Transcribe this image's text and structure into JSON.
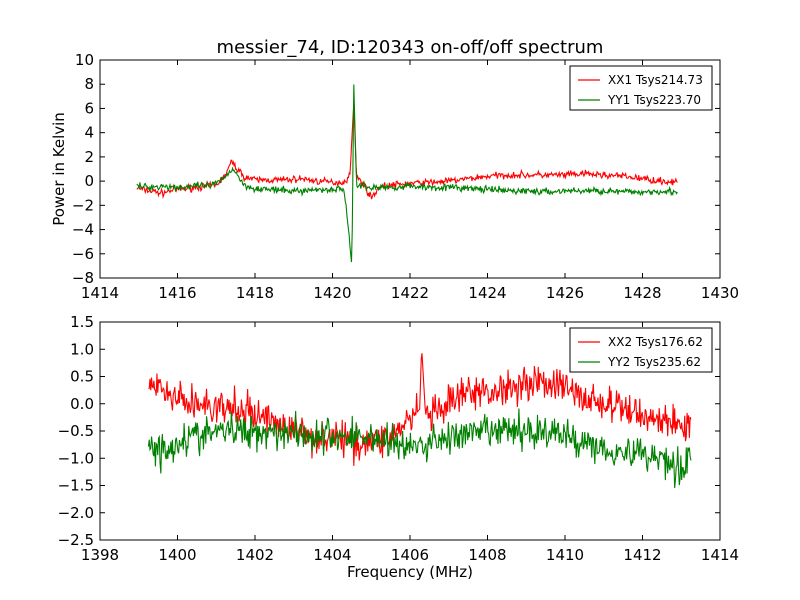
{
  "title": "messier_74, ID:120343 on-off/off spectrum",
  "ylabel": "Power in Kelvin",
  "xlabel": "Frequency (MHz)",
  "colors": {
    "XX": "#ff0000",
    "YY": "#008000"
  },
  "chart_data": [
    {
      "type": "line",
      "title": "messier_74, ID:120343 on-off/off spectrum",
      "xlabel": "",
      "ylabel": "Power in Kelvin",
      "xlim": [
        1414,
        1430
      ],
      "ylim": [
        -8,
        10
      ],
      "xticks": [
        1414,
        1416,
        1418,
        1420,
        1422,
        1424,
        1426,
        1428,
        1430
      ],
      "yticks": [
        -8,
        -6,
        -4,
        -2,
        0,
        2,
        4,
        6,
        8,
        10
      ],
      "grid": false,
      "legend": "top-right",
      "series": [
        {
          "name": "XX1 Tsys214.73",
          "color": "#ff0000",
          "points": [
            [
              1414.95,
              -0.6
            ],
            [
              1415.3,
              -0.8
            ],
            [
              1415.6,
              -1.0
            ],
            [
              1415.9,
              -0.7
            ],
            [
              1416.2,
              -0.6
            ],
            [
              1416.5,
              -0.5
            ],
            [
              1416.8,
              -0.4
            ],
            [
              1417.0,
              -0.3
            ],
            [
              1417.2,
              0.3
            ],
            [
              1417.4,
              1.6
            ],
            [
              1417.5,
              1.2
            ],
            [
              1417.7,
              0.4
            ],
            [
              1418.0,
              0.1
            ],
            [
              1418.4,
              0.1
            ],
            [
              1418.8,
              0.1
            ],
            [
              1419.2,
              0.2
            ],
            [
              1419.6,
              0.0
            ],
            [
              1420.0,
              -0.1
            ],
            [
              1420.3,
              -0.1
            ],
            [
              1420.45,
              0.5
            ],
            [
              1420.55,
              6.5
            ],
            [
              1420.62,
              0.3
            ],
            [
              1420.8,
              -0.2
            ],
            [
              1421.0,
              -1.4
            ],
            [
              1421.2,
              -0.5
            ],
            [
              1421.6,
              -0.3
            ],
            [
              1422.0,
              -0.2
            ],
            [
              1422.5,
              -0.1
            ],
            [
              1423.0,
              0.0
            ],
            [
              1423.5,
              0.2
            ],
            [
              1424.0,
              0.4
            ],
            [
              1424.5,
              0.5
            ],
            [
              1425.0,
              0.5
            ],
            [
              1425.5,
              0.5
            ],
            [
              1426.0,
              0.5
            ],
            [
              1426.5,
              0.6
            ],
            [
              1427.0,
              0.5
            ],
            [
              1427.5,
              0.4
            ],
            [
              1428.0,
              0.2
            ],
            [
              1428.5,
              0.0
            ],
            [
              1428.9,
              -0.1
            ]
          ]
        },
        {
          "name": "YY1 Tsys223.70",
          "color": "#008000",
          "points": [
            [
              1414.95,
              -0.4
            ],
            [
              1415.3,
              -0.5
            ],
            [
              1415.6,
              -0.4
            ],
            [
              1415.9,
              -0.5
            ],
            [
              1416.2,
              -0.5
            ],
            [
              1416.5,
              -0.4
            ],
            [
              1416.8,
              -0.4
            ],
            [
              1417.0,
              -0.2
            ],
            [
              1417.2,
              0.2
            ],
            [
              1417.4,
              1.0
            ],
            [
              1417.5,
              0.8
            ],
            [
              1417.7,
              -0.3
            ],
            [
              1418.0,
              -0.6
            ],
            [
              1418.4,
              -0.7
            ],
            [
              1418.8,
              -0.8
            ],
            [
              1419.2,
              -0.8
            ],
            [
              1419.6,
              -0.7
            ],
            [
              1420.0,
              -0.7
            ],
            [
              1420.3,
              -0.6
            ],
            [
              1420.5,
              -7.0
            ],
            [
              1420.55,
              8.0
            ],
            [
              1420.62,
              -0.4
            ],
            [
              1420.8,
              -0.3
            ],
            [
              1421.0,
              -0.6
            ],
            [
              1421.2,
              -0.5
            ],
            [
              1421.6,
              -0.5
            ],
            [
              1422.0,
              -0.4
            ],
            [
              1422.5,
              -0.5
            ],
            [
              1423.0,
              -0.5
            ],
            [
              1423.5,
              -0.6
            ],
            [
              1424.0,
              -0.7
            ],
            [
              1424.5,
              -0.8
            ],
            [
              1425.0,
              -0.8
            ],
            [
              1425.5,
              -0.9
            ],
            [
              1426.0,
              -0.8
            ],
            [
              1426.5,
              -0.8
            ],
            [
              1427.0,
              -0.8
            ],
            [
              1427.5,
              -0.9
            ],
            [
              1428.0,
              -0.9
            ],
            [
              1428.5,
              -0.8
            ],
            [
              1428.9,
              -0.9
            ]
          ]
        }
      ]
    },
    {
      "type": "line",
      "title": "",
      "xlabel": "Frequency (MHz)",
      "ylabel": "",
      "xlim": [
        1398,
        1414
      ],
      "ylim": [
        -2.5,
        1.5
      ],
      "xticks": [
        1398,
        1400,
        1402,
        1404,
        1406,
        1408,
        1410,
        1412,
        1414
      ],
      "yticks": [
        -2.5,
        -2.0,
        -1.5,
        -1.0,
        -0.5,
        0.0,
        0.5,
        1.0,
        1.5
      ],
      "grid": false,
      "legend": "top-right",
      "series": [
        {
          "name": "XX2 Tsys176.62",
          "color": "#ff0000",
          "points": [
            [
              1399.25,
              0.2
            ],
            [
              1399.5,
              0.3
            ],
            [
              1399.8,
              0.1
            ],
            [
              1400.0,
              0.1
            ],
            [
              1400.3,
              0.0
            ],
            [
              1400.6,
              0.0
            ],
            [
              1401.0,
              -0.1
            ],
            [
              1401.5,
              -0.1
            ],
            [
              1402.0,
              -0.2
            ],
            [
              1402.5,
              -0.3
            ],
            [
              1403.0,
              -0.5
            ],
            [
              1403.5,
              -0.6
            ],
            [
              1404.0,
              -0.6
            ],
            [
              1404.5,
              -0.7
            ],
            [
              1405.0,
              -0.7
            ],
            [
              1405.5,
              -0.6
            ],
            [
              1406.0,
              -0.3
            ],
            [
              1406.25,
              -0.1
            ],
            [
              1406.3,
              1.05
            ],
            [
              1406.4,
              -0.2
            ],
            [
              1406.8,
              -0.2
            ],
            [
              1407.0,
              0.0
            ],
            [
              1407.5,
              0.2
            ],
            [
              1408.0,
              0.2
            ],
            [
              1408.5,
              0.3
            ],
            [
              1409.0,
              0.4
            ],
            [
              1409.5,
              0.4
            ],
            [
              1410.0,
              0.3
            ],
            [
              1410.5,
              0.1
            ],
            [
              1411.0,
              0.0
            ],
            [
              1411.5,
              -0.1
            ],
            [
              1412.0,
              -0.2
            ],
            [
              1412.5,
              -0.3
            ],
            [
              1413.0,
              -0.4
            ],
            [
              1413.25,
              -0.4
            ]
          ]
        },
        {
          "name": "YY2 Tsys235.62",
          "color": "#008000",
          "points": [
            [
              1399.25,
              -0.6
            ],
            [
              1399.5,
              -0.9
            ],
            [
              1399.8,
              -0.8
            ],
            [
              1400.0,
              -0.7
            ],
            [
              1400.3,
              -0.6
            ],
            [
              1400.6,
              -0.6
            ],
            [
              1401.0,
              -0.5
            ],
            [
              1401.5,
              -0.5
            ],
            [
              1402.0,
              -0.5
            ],
            [
              1402.5,
              -0.5
            ],
            [
              1403.0,
              -0.5
            ],
            [
              1403.5,
              -0.6
            ],
            [
              1404.0,
              -0.6
            ],
            [
              1404.5,
              -0.6
            ],
            [
              1405.0,
              -0.6
            ],
            [
              1405.5,
              -0.7
            ],
            [
              1406.0,
              -0.8
            ],
            [
              1406.3,
              -0.8
            ],
            [
              1406.5,
              -0.7
            ],
            [
              1407.0,
              -0.6
            ],
            [
              1407.5,
              -0.6
            ],
            [
              1408.0,
              -0.5
            ],
            [
              1408.5,
              -0.5
            ],
            [
              1409.0,
              -0.5
            ],
            [
              1409.5,
              -0.5
            ],
            [
              1410.0,
              -0.6
            ],
            [
              1410.5,
              -0.7
            ],
            [
              1411.0,
              -0.8
            ],
            [
              1411.5,
              -0.9
            ],
            [
              1412.0,
              -0.9
            ],
            [
              1412.5,
              -1.0
            ],
            [
              1412.8,
              -1.1
            ],
            [
              1413.0,
              -1.2
            ],
            [
              1413.25,
              -0.9
            ]
          ]
        }
      ]
    }
  ]
}
